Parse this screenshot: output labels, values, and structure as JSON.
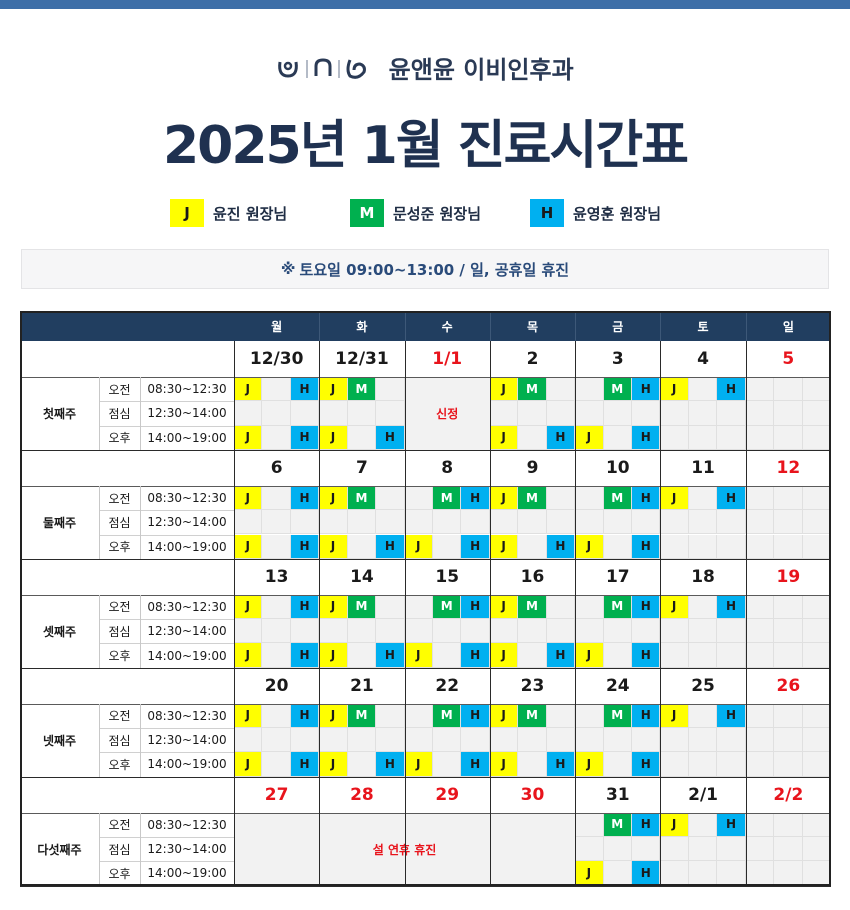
{
  "brand": {
    "name": "윤앤윤 이비인후과"
  },
  "title": "2025년 1월 진료시간표",
  "legend": [
    {
      "code": "J",
      "name": "윤진 원장님",
      "color": "#ffff00"
    },
    {
      "code": "M",
      "name": "문성준 원장님",
      "color": "#00b04f"
    },
    {
      "code": "H",
      "name": "윤영훈 원장님",
      "color": "#00b0f0"
    }
  ],
  "notice": {
    "icon": "※",
    "text": "토요일  09:00~13:00 / 일, 공휴일 휴진"
  },
  "weekdays": [
    "월",
    "화",
    "수",
    "목",
    "금",
    "토",
    "일"
  ],
  "periods": [
    {
      "name": "오전",
      "time": "08:30~12:30"
    },
    {
      "name": "점심",
      "time": "12:30~14:00"
    },
    {
      "name": "오후",
      "time": "14:00~19:00"
    }
  ],
  "colors": {
    "header": "#213e60",
    "holiday": "#e8141c"
  },
  "weeks": [
    {
      "label": "첫째주",
      "dates": [
        "12/30",
        "12/31",
        "1/1",
        "2",
        "3",
        "4",
        "5"
      ],
      "red": [
        false,
        false,
        true,
        false,
        false,
        false,
        true
      ],
      "am": [
        [
          "J",
          "",
          "H"
        ],
        [
          "J",
          "M",
          ""
        ],
        [
          "",
          "",
          ""
        ],
        [
          "J",
          "M",
          ""
        ],
        [
          "",
          "M",
          "H"
        ],
        [
          "J",
          "",
          "H"
        ],
        [
          "",
          "",
          ""
        ]
      ],
      "pm": [
        [
          "J",
          "",
          "H"
        ],
        [
          "J",
          "",
          "H"
        ],
        [
          "",
          "",
          ""
        ],
        [
          "J",
          "",
          "H"
        ],
        [
          "J",
          "",
          "H"
        ],
        [
          "",
          "",
          ""
        ],
        [
          "",
          "",
          ""
        ]
      ],
      "merge": {
        "from": 2,
        "to": 2,
        "text": "신정"
      }
    },
    {
      "label": "둘째주",
      "dates": [
        "6",
        "7",
        "8",
        "9",
        "10",
        "11",
        "12"
      ],
      "red": [
        false,
        false,
        false,
        false,
        false,
        false,
        true
      ],
      "am": [
        [
          "J",
          "",
          "H"
        ],
        [
          "J",
          "M",
          ""
        ],
        [
          "",
          "M",
          "H"
        ],
        [
          "J",
          "M",
          ""
        ],
        [
          "",
          "M",
          "H"
        ],
        [
          "J",
          "",
          "H"
        ],
        [
          "",
          "",
          ""
        ]
      ],
      "pm": [
        [
          "J",
          "",
          "H"
        ],
        [
          "J",
          "",
          "H"
        ],
        [
          "J",
          "",
          "H"
        ],
        [
          "J",
          "",
          "H"
        ],
        [
          "J",
          "",
          "H"
        ],
        [
          "",
          "",
          ""
        ],
        [
          "",
          "",
          ""
        ]
      ]
    },
    {
      "label": "셋째주",
      "dates": [
        "13",
        "14",
        "15",
        "16",
        "17",
        "18",
        "19"
      ],
      "red": [
        false,
        false,
        false,
        false,
        false,
        false,
        true
      ],
      "am": [
        [
          "J",
          "",
          "H"
        ],
        [
          "J",
          "M",
          ""
        ],
        [
          "",
          "M",
          "H"
        ],
        [
          "J",
          "M",
          ""
        ],
        [
          "",
          "M",
          "H"
        ],
        [
          "J",
          "",
          "H"
        ],
        [
          "",
          "",
          ""
        ]
      ],
      "pm": [
        [
          "J",
          "",
          "H"
        ],
        [
          "J",
          "",
          "H"
        ],
        [
          "J",
          "",
          "H"
        ],
        [
          "J",
          "",
          "H"
        ],
        [
          "J",
          "",
          "H"
        ],
        [
          "",
          "",
          ""
        ],
        [
          "",
          "",
          ""
        ]
      ]
    },
    {
      "label": "넷째주",
      "dates": [
        "20",
        "21",
        "22",
        "23",
        "24",
        "25",
        "26"
      ],
      "red": [
        false,
        false,
        false,
        false,
        false,
        false,
        true
      ],
      "am": [
        [
          "J",
          "",
          "H"
        ],
        [
          "J",
          "M",
          ""
        ],
        [
          "",
          "M",
          "H"
        ],
        [
          "J",
          "M",
          ""
        ],
        [
          "",
          "M",
          "H"
        ],
        [
          "J",
          "",
          "H"
        ],
        [
          "",
          "",
          ""
        ]
      ],
      "pm": [
        [
          "J",
          "",
          "H"
        ],
        [
          "J",
          "",
          "H"
        ],
        [
          "J",
          "",
          "H"
        ],
        [
          "J",
          "",
          "H"
        ],
        [
          "J",
          "",
          "H"
        ],
        [
          "",
          "",
          ""
        ],
        [
          "",
          "",
          ""
        ]
      ]
    },
    {
      "label": "다섯째주",
      "dates": [
        "27",
        "28",
        "29",
        "30",
        "31",
        "2/1",
        "2/2"
      ],
      "red": [
        true,
        true,
        true,
        true,
        false,
        false,
        true
      ],
      "am": [
        [
          "",
          "",
          ""
        ],
        [
          "",
          "",
          ""
        ],
        [
          "",
          "",
          ""
        ],
        [
          "",
          "",
          ""
        ],
        [
          "",
          "M",
          "H"
        ],
        [
          "J",
          "",
          "H"
        ],
        [
          "",
          "",
          ""
        ]
      ],
      "pm": [
        [
          "",
          "",
          ""
        ],
        [
          "",
          "",
          ""
        ],
        [
          "",
          "",
          ""
        ],
        [
          "",
          "",
          ""
        ],
        [
          "J",
          "",
          "H"
        ],
        [
          "",
          "",
          ""
        ],
        [
          "",
          "",
          ""
        ]
      ],
      "merge": {
        "from": 0,
        "to": 3,
        "text": "설 연휴 휴진"
      }
    }
  ]
}
